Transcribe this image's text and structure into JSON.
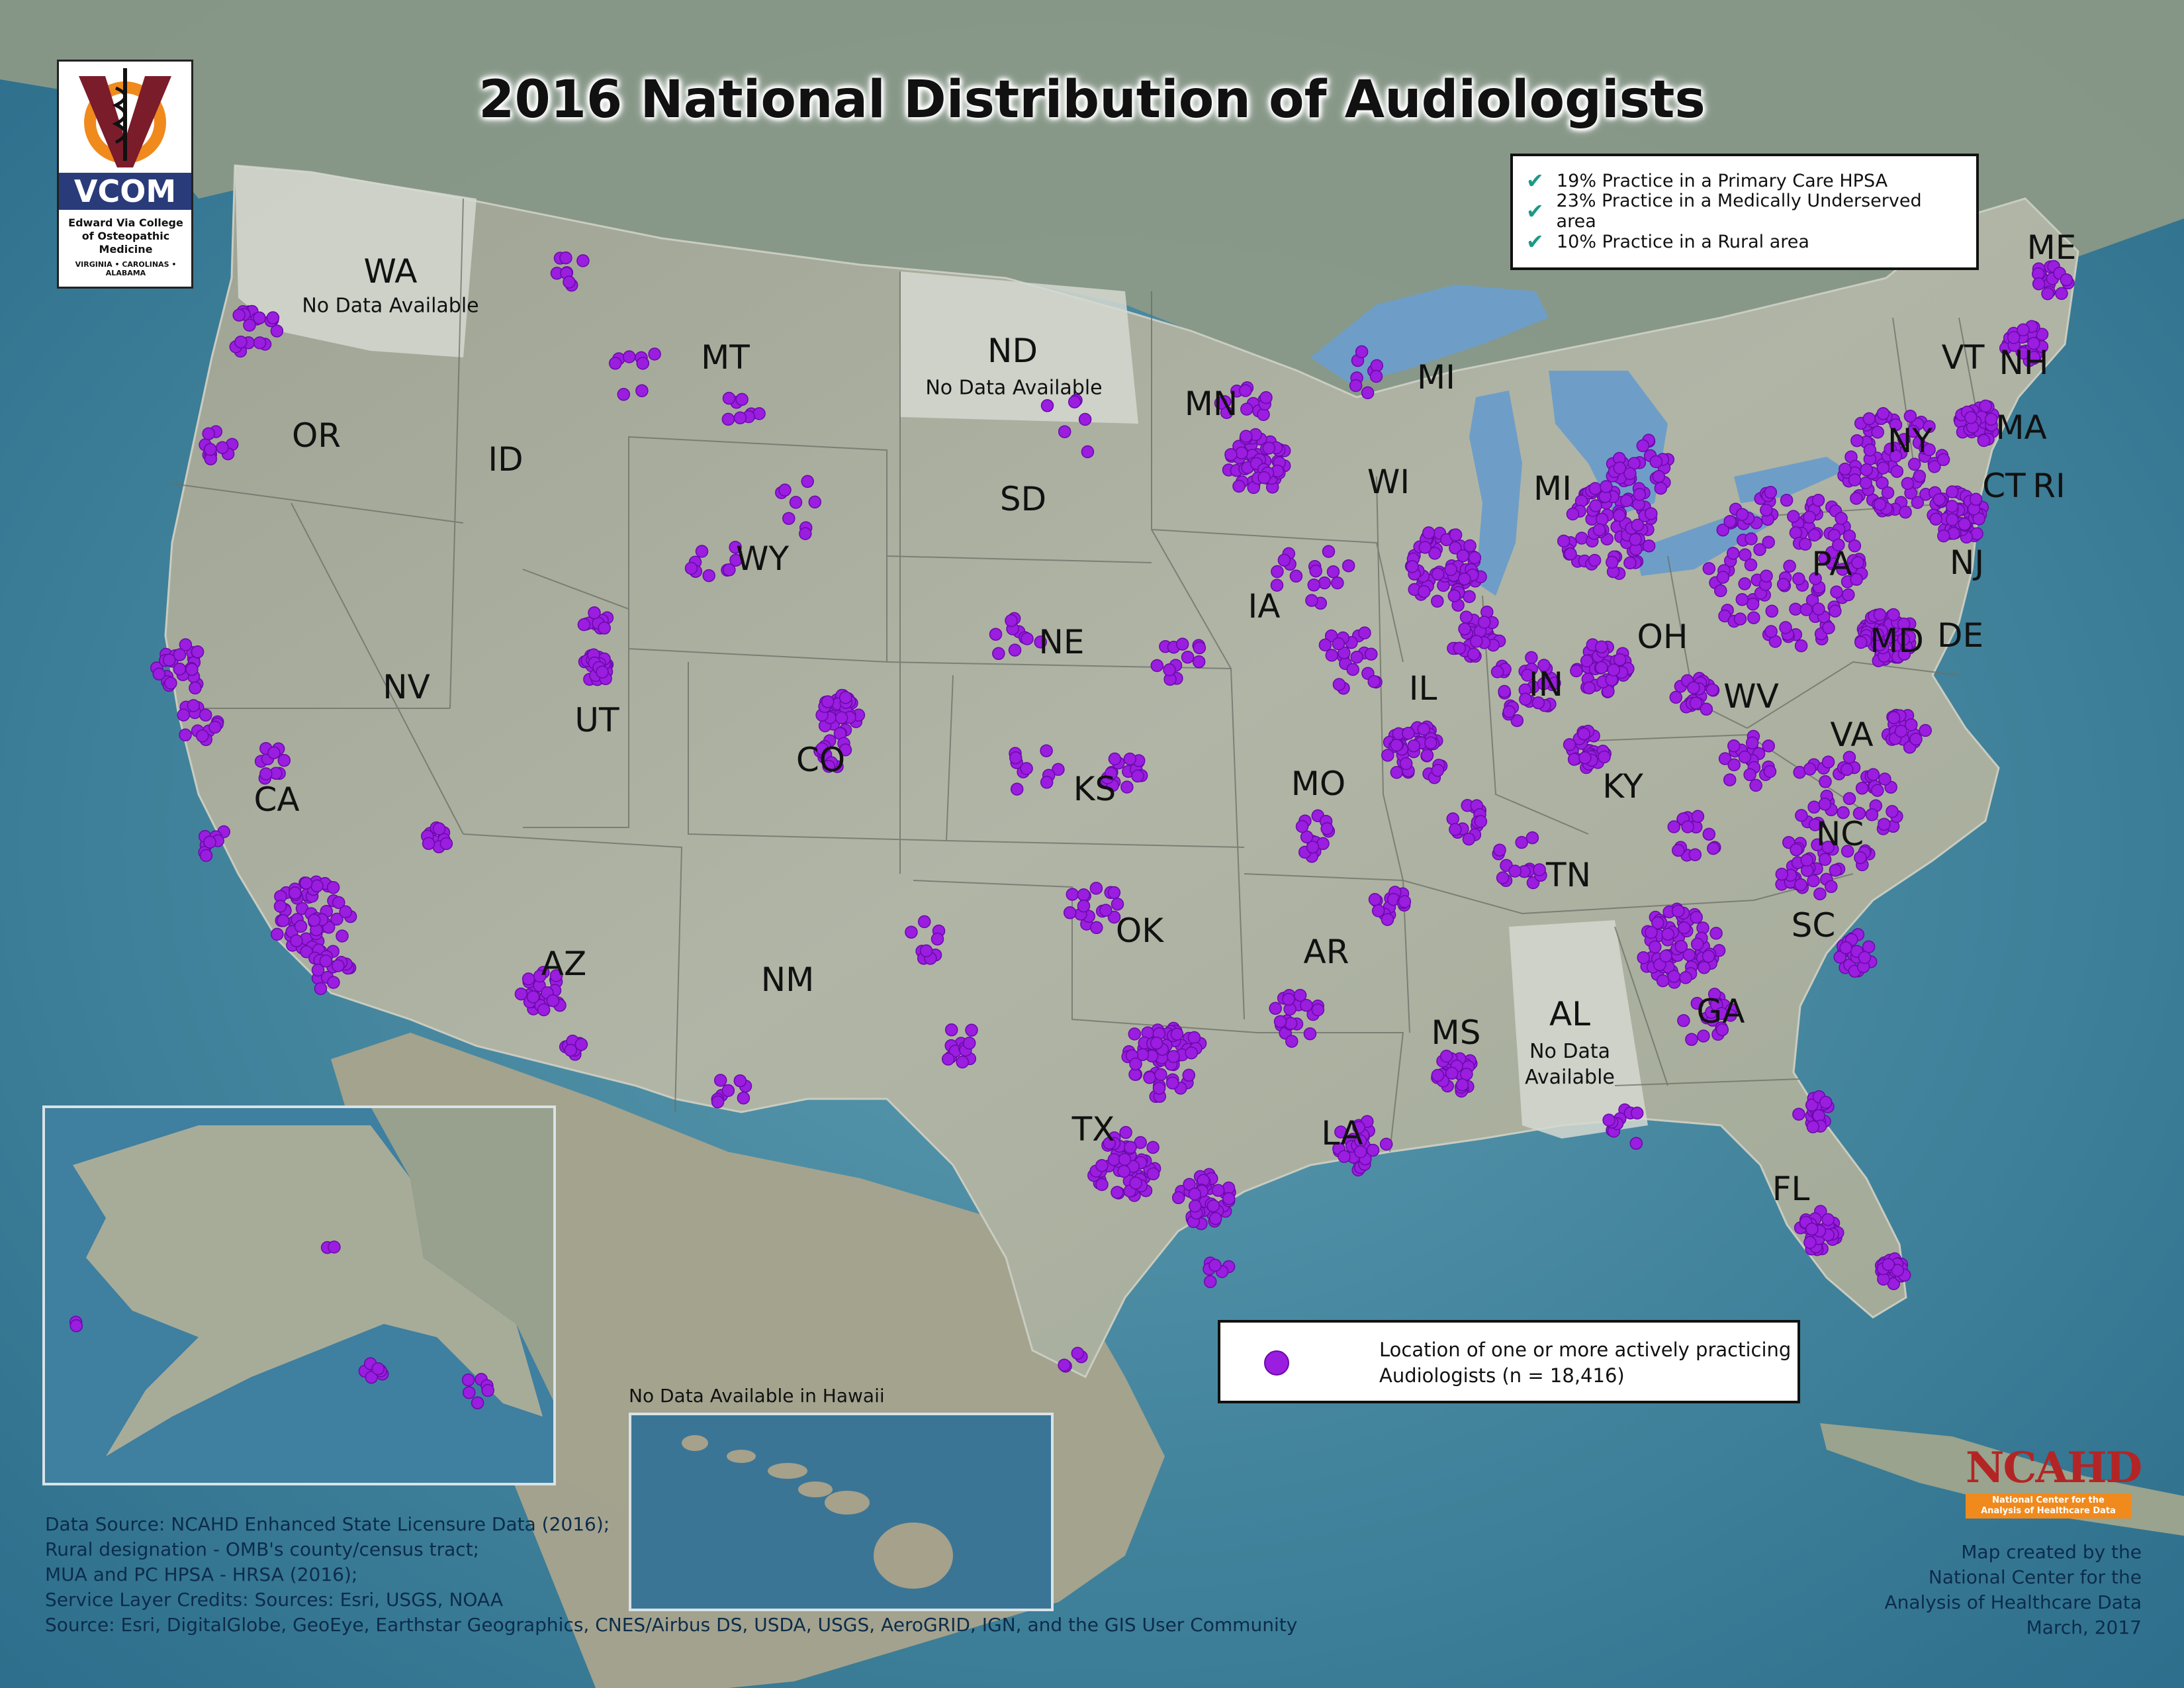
{
  "title": "2016 National Distribution of Audiologists",
  "facts": [
    {
      "icon": "check-icon",
      "text": "19% Practice in a Primary Care HPSA"
    },
    {
      "icon": "check-icon",
      "text": "23% Practice in a Medically Underserved area"
    },
    {
      "icon": "check-icon",
      "text": "10% Practice in a Rural area"
    }
  ],
  "states": [
    "WA",
    "OR",
    "CA",
    "ID",
    "NV",
    "UT",
    "AZ",
    "MT",
    "WY",
    "CO",
    "NM",
    "ND",
    "SD",
    "NE",
    "KS",
    "OK",
    "TX",
    "MN",
    "IA",
    "MO",
    "AR",
    "LA",
    "WI",
    "IL",
    "MI",
    "MI",
    "IN",
    "OH",
    "KY",
    "TN",
    "MS",
    "AL",
    "GA",
    "FL",
    "SC",
    "NC",
    "VA",
    "WV",
    "PA",
    "NY",
    "VT",
    "NH",
    "ME",
    "MA",
    "CT",
    "RI",
    "NJ",
    "MD",
    "DE"
  ],
  "no_data": {
    "wa": "No Data Available",
    "nd": "No Data Available",
    "al_line1": "No Data",
    "al_line2": "Available",
    "hawaii": "No Data Available in Hawaii"
  },
  "legend": {
    "line1": "Location of one or more actively practicing",
    "line2": "Audiologists (n = 18,416)",
    "dot_color": "#9a1de0"
  },
  "logo": {
    "name": "VCOM",
    "sub": "Edward Via College of Osteopathic Medicine",
    "sub2": "VIRGINIA • CAROLINAS • ALABAMA"
  },
  "sources": [
    "Data Source: NCAHD Enhanced State Licensure Data (2016);",
    "Rural designation - OMB's county/census tract;",
    "MUA and PC HPSA - HRSA (2016);",
    "Service Layer Credits: Sources: Esri, USGS, NOAA",
    " Source: Esri, DigitalGlobe, GeoEye, Earthstar Geographics, CNES/Airbus DS, USDA, USGS, AeroGRID, IGN, and the GIS User Community"
  ],
  "ncahd": {
    "name": "NCAHD",
    "full_line1": "National Center for the",
    "full_line2": "Analysis of Healthcare Data"
  },
  "credit": [
    "Map created by the",
    "National Center for the",
    "Analysis of Healthcare Data",
    "March, 2017"
  ],
  "colors": {
    "ocean": "#4f8fa6",
    "land": "#a9ad9d",
    "dot": "#9a1de0",
    "check": "#1b9a86"
  }
}
